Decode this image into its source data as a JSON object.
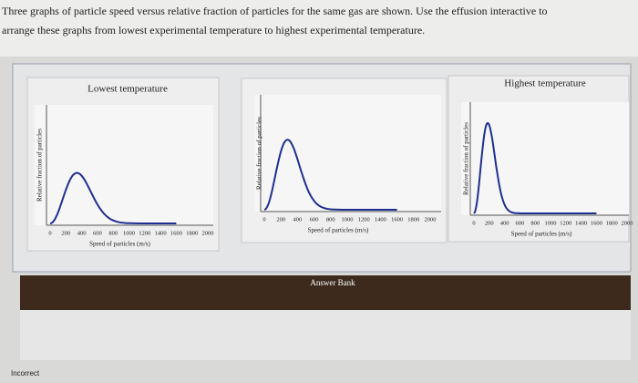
{
  "instructions": [
    "Three graphs of particle speed versus relative fraction of particles for the same gas are shown. Use the effusion interactive to",
    "arrange these graphs from lowest experimental temperature to highest experimental temperature."
  ],
  "labels": {
    "lowest": "Lowest temperature",
    "highest": "Highest temperature"
  },
  "graphs": [
    {
      "y_label": "Relative fraction of particles",
      "x_label": "Speed of particles (m/s)",
      "x_ticks": [
        0,
        200,
        400,
        600,
        800,
        1000,
        1200,
        1400,
        1600,
        1800,
        2000
      ]
    },
    {
      "y_label": "Relative fraction of particles",
      "x_label": "Speed of particles (m/s)",
      "x_ticks": [
        0,
        200,
        400,
        600,
        800,
        1000,
        1200,
        1400,
        1600,
        1800,
        2000
      ]
    },
    {
      "y_label": "Relative fraction of particles",
      "x_label": "Speed of particles (m/s)",
      "x_ticks": [
        0,
        200,
        400,
        600,
        800,
        1000,
        1200,
        1400,
        1600,
        1800,
        2000
      ]
    }
  ],
  "answer_bank": "Answer Bank",
  "status": "Incorrect"
}
